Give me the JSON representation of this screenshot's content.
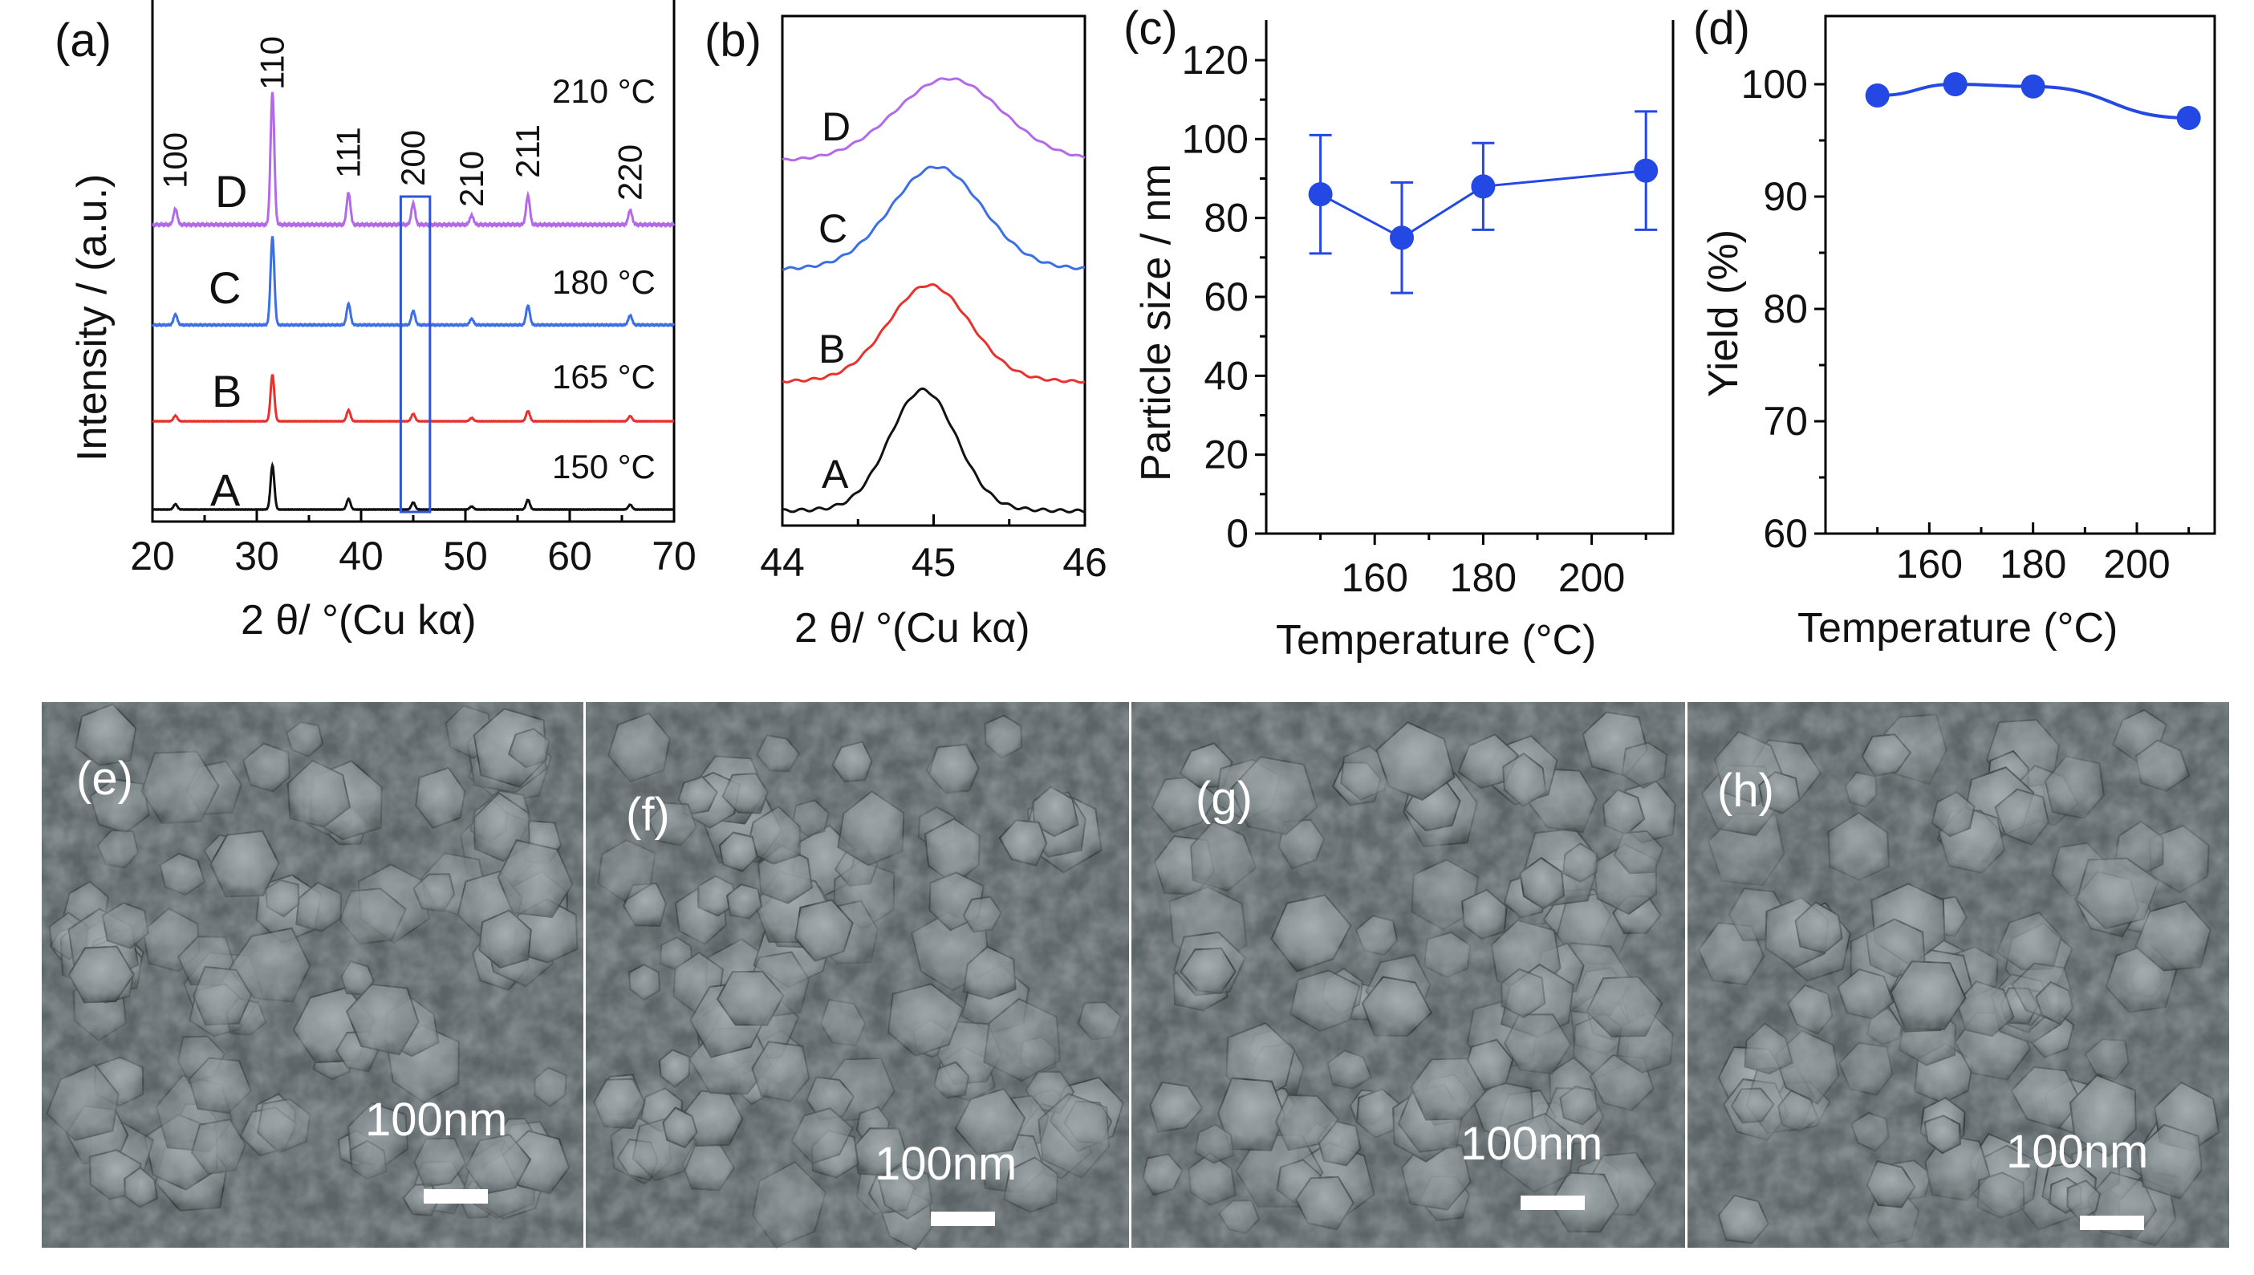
{
  "colors": {
    "A": "#111111",
    "B": "#e8322e",
    "C": "#3c6fe6",
    "D": "#b26ae8",
    "marker": "#2348e3",
    "highlight_box": "#2f54d8",
    "sem_base": "#5b6466"
  },
  "chart_data": [
    {
      "panel": "a",
      "type": "line",
      "title": "(a)",
      "xlabel": "2 θ/ °(Cu kα)",
      "ylabel": "Intensity / (a.u.)",
      "xlim": [
        20,
        70
      ],
      "xticks": [
        20,
        30,
        40,
        50,
        60,
        70
      ],
      "peaks": [
        {
          "hkl": "100",
          "x": 22.2,
          "rel": 0.12
        },
        {
          "hkl": "110",
          "x": 31.5,
          "rel": 1.0
        },
        {
          "hkl": "111",
          "x": 38.8,
          "rel": 0.24
        },
        {
          "hkl": "200",
          "x": 45.0,
          "rel": 0.16
        },
        {
          "hkl": "210",
          "x": 50.6,
          "rel": 0.07
        },
        {
          "hkl": "211",
          "x": 56.0,
          "rel": 0.22
        },
        {
          "hkl": "220",
          "x": 65.8,
          "rel": 0.11
        }
      ],
      "series": [
        {
          "name": "A",
          "temperature": "150 °C"
        },
        {
          "name": "B",
          "temperature": "165 °C"
        },
        {
          "name": "C",
          "temperature": "180 °C"
        },
        {
          "name": "D",
          "temperature": "210 °C"
        }
      ],
      "highlight_range": [
        43.8,
        46.6
      ],
      "hkl_labels": [
        "100",
        "110",
        "111",
        "200",
        "210",
        "211",
        "220"
      ]
    },
    {
      "panel": "b",
      "type": "line",
      "title": "(b)",
      "xlabel": "2 θ/ °(Cu kα)",
      "xlim": [
        44,
        46
      ],
      "xticks": [
        44,
        45,
        46
      ],
      "series": [
        {
          "name": "A",
          "peak_center": 44.93,
          "peak_width": 0.22
        },
        {
          "name": "B",
          "peak_center": 44.97,
          "peak_width": 0.27
        },
        {
          "name": "C",
          "peak_center": 45.02,
          "peak_width": 0.3
        },
        {
          "name": "D",
          "peak_center": 45.1,
          "peak_width": 0.35
        }
      ]
    },
    {
      "panel": "c",
      "type": "scatter",
      "title": "(c)",
      "xlabel": "Temperature (°C)",
      "ylabel": "Particle size / nm",
      "xlim": [
        140,
        215
      ],
      "ylim": [
        0,
        120
      ],
      "xticks": [
        160,
        180,
        200
      ],
      "yticks": [
        0,
        20,
        40,
        60,
        80,
        100,
        120
      ],
      "x": [
        150,
        165,
        180,
        210
      ],
      "y": [
        86,
        75,
        88,
        92
      ],
      "error": [
        15,
        14,
        11,
        15
      ]
    },
    {
      "panel": "d",
      "type": "line",
      "title": "(d)",
      "xlabel": "Temperature (°C)",
      "ylabel": "Yield (%)",
      "xlim": [
        140,
        215
      ],
      "ylim": [
        60,
        103
      ],
      "xticks": [
        160,
        180,
        200
      ],
      "yticks": [
        60,
        70,
        80,
        90,
        100
      ],
      "x": [
        150,
        165,
        180,
        210
      ],
      "y": [
        99.0,
        100.0,
        99.8,
        97.0
      ]
    }
  ],
  "sem_panels": [
    {
      "label": "(e)",
      "scale": "100nm"
    },
    {
      "label": "(f)",
      "scale": "100nm"
    },
    {
      "label": "(g)",
      "scale": "100nm"
    },
    {
      "label": "(h)",
      "scale": "100nm"
    }
  ]
}
